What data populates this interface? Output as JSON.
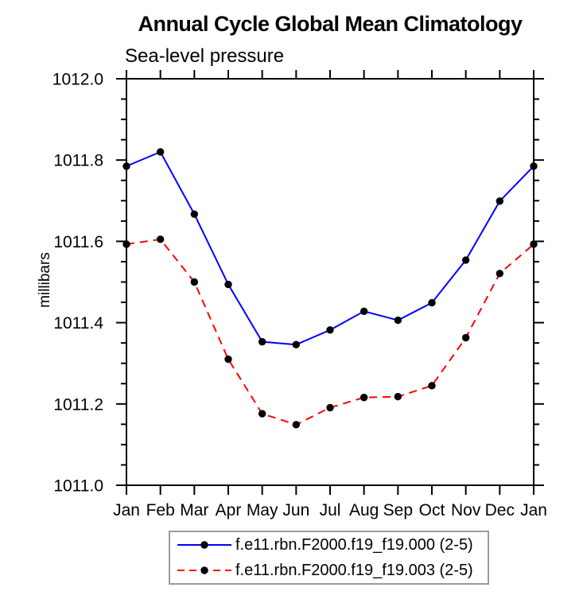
{
  "chart_data": {
    "type": "line",
    "title": "Annual Cycle Global Mean Climatology",
    "subtitle": "Sea-level pressure",
    "ylabel": "millibars",
    "categories": [
      "Jan",
      "Feb",
      "Mar",
      "Apr",
      "May",
      "Jun",
      "Jul",
      "Aug",
      "Sep",
      "Oct",
      "Nov",
      "Dec",
      "Jan"
    ],
    "series": [
      {
        "name": "f.e11.rbn.F2000.f19_f19.000 (2-5)",
        "color": "#0000ff",
        "line_style": "solid",
        "marker": "black-dot",
        "values": [
          1011.785,
          1011.82,
          1011.667,
          1011.494,
          1011.353,
          1011.346,
          1011.382,
          1011.428,
          1011.406,
          1011.449,
          1011.554,
          1011.699,
          1011.785
        ]
      },
      {
        "name": "f.e11.rbn.F2000.f19_f19.003 (2-5)",
        "color": "#ff0000",
        "line_style": "dashed",
        "marker": "black-dot",
        "values": [
          1011.593,
          1011.605,
          1011.5,
          1011.31,
          1011.176,
          1011.149,
          1011.191,
          1011.216,
          1011.218,
          1011.245,
          1011.363,
          1011.521,
          1011.593
        ]
      }
    ],
    "ylim": [
      1011.0,
      1012.0
    ],
    "ytick_major": 0.2,
    "ytick_minor": 0.05,
    "ytick_label_format": "0.1f",
    "grid": "off",
    "legend_position": "bottom-center",
    "axis_color": "#000000",
    "marker_color": "#000000"
  }
}
